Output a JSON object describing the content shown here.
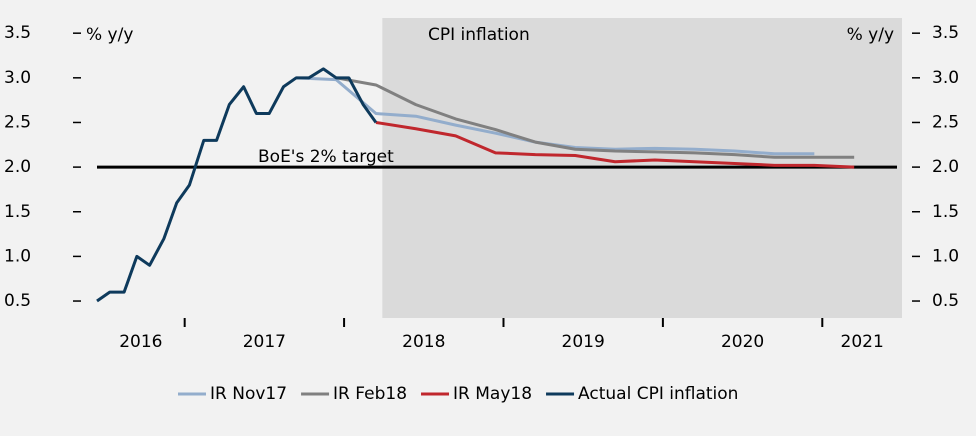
{
  "chart_data": {
    "type": "line",
    "title": "CPI inflation",
    "y_label": "% y/y",
    "y2_label": "% y/y",
    "xlim": [
      2016.45,
      2021.5
    ],
    "xticks": [
      2017,
      2018,
      2019,
      2020,
      2021
    ],
    "categories": [
      "2016",
      "2017",
      "2018",
      "2019",
      "2020",
      "2021"
    ],
    "ylim": [
      0.31,
      3.67
    ],
    "yticks": [
      0.5,
      {
        "value": 1,
        "label": "1.0"
      },
      1.5,
      {
        "value": 2,
        "label": "2.0"
      },
      2.5,
      {
        "value": 3,
        "label": "3.0"
      },
      3.5
    ],
    "forecast_start": 2018.24,
    "forecast_color": "#dadada",
    "target": 2,
    "target_label": "BoE's 2% target",
    "series": [
      {
        "name": "IR Nov17",
        "color": "#93adcc",
        "x": [
          2017.7,
          2017.95,
          2018.2,
          2018.45,
          2018.7,
          2018.95,
          2019.2,
          2019.45,
          2019.7,
          2019.95,
          2020.2,
          2020.45,
          2020.7,
          2020.95
        ],
        "values": [
          3.0,
          2.98,
          2.6,
          2.57,
          2.47,
          2.38,
          2.28,
          2.22,
          2.2,
          2.21,
          2.2,
          2.18,
          2.15,
          2.15
        ]
      },
      {
        "name": "IR Feb18",
        "color": "#808080",
        "x": [
          2017.95,
          2018.2,
          2018.45,
          2018.7,
          2018.95,
          2019.2,
          2019.45,
          2019.7,
          2019.95,
          2020.2,
          2020.45,
          2020.7,
          2020.95,
          2021.2
        ],
        "values": [
          3.0,
          2.92,
          2.7,
          2.54,
          2.42,
          2.28,
          2.2,
          2.18,
          2.17,
          2.16,
          2.14,
          2.11,
          2.11,
          2.11
        ]
      },
      {
        "name": "IR May18",
        "color": "#c0272d",
        "x": [
          2018.2,
          2018.45,
          2018.7,
          2018.95,
          2019.2,
          2019.45,
          2019.7,
          2019.95,
          2020.2,
          2020.45,
          2020.7,
          2020.95,
          2021.2
        ],
        "values": [
          2.5,
          2.43,
          2.35,
          2.16,
          2.14,
          2.13,
          2.06,
          2.08,
          2.06,
          2.04,
          2.02,
          2.02,
          2.0
        ]
      },
      {
        "name": "Actual CPI inflation",
        "color": "#0e3a5c",
        "x": [
          2016.45,
          2016.53,
          2016.62,
          2016.7,
          2016.78,
          2016.87,
          2016.95,
          2017.03,
          2017.12,
          2017.2,
          2017.28,
          2017.37,
          2017.45,
          2017.53,
          2017.62,
          2017.7,
          2017.78,
          2017.87,
          2017.95,
          2018.03,
          2018.12,
          2018.2
        ],
        "values": [
          0.5,
          0.6,
          0.6,
          1.0,
          0.9,
          1.2,
          1.6,
          1.8,
          2.3,
          2.3,
          2.7,
          2.9,
          2.6,
          2.6,
          2.9,
          3.0,
          3.0,
          3.1,
          3.0,
          3.0,
          2.7,
          2.5
        ]
      }
    ]
  }
}
